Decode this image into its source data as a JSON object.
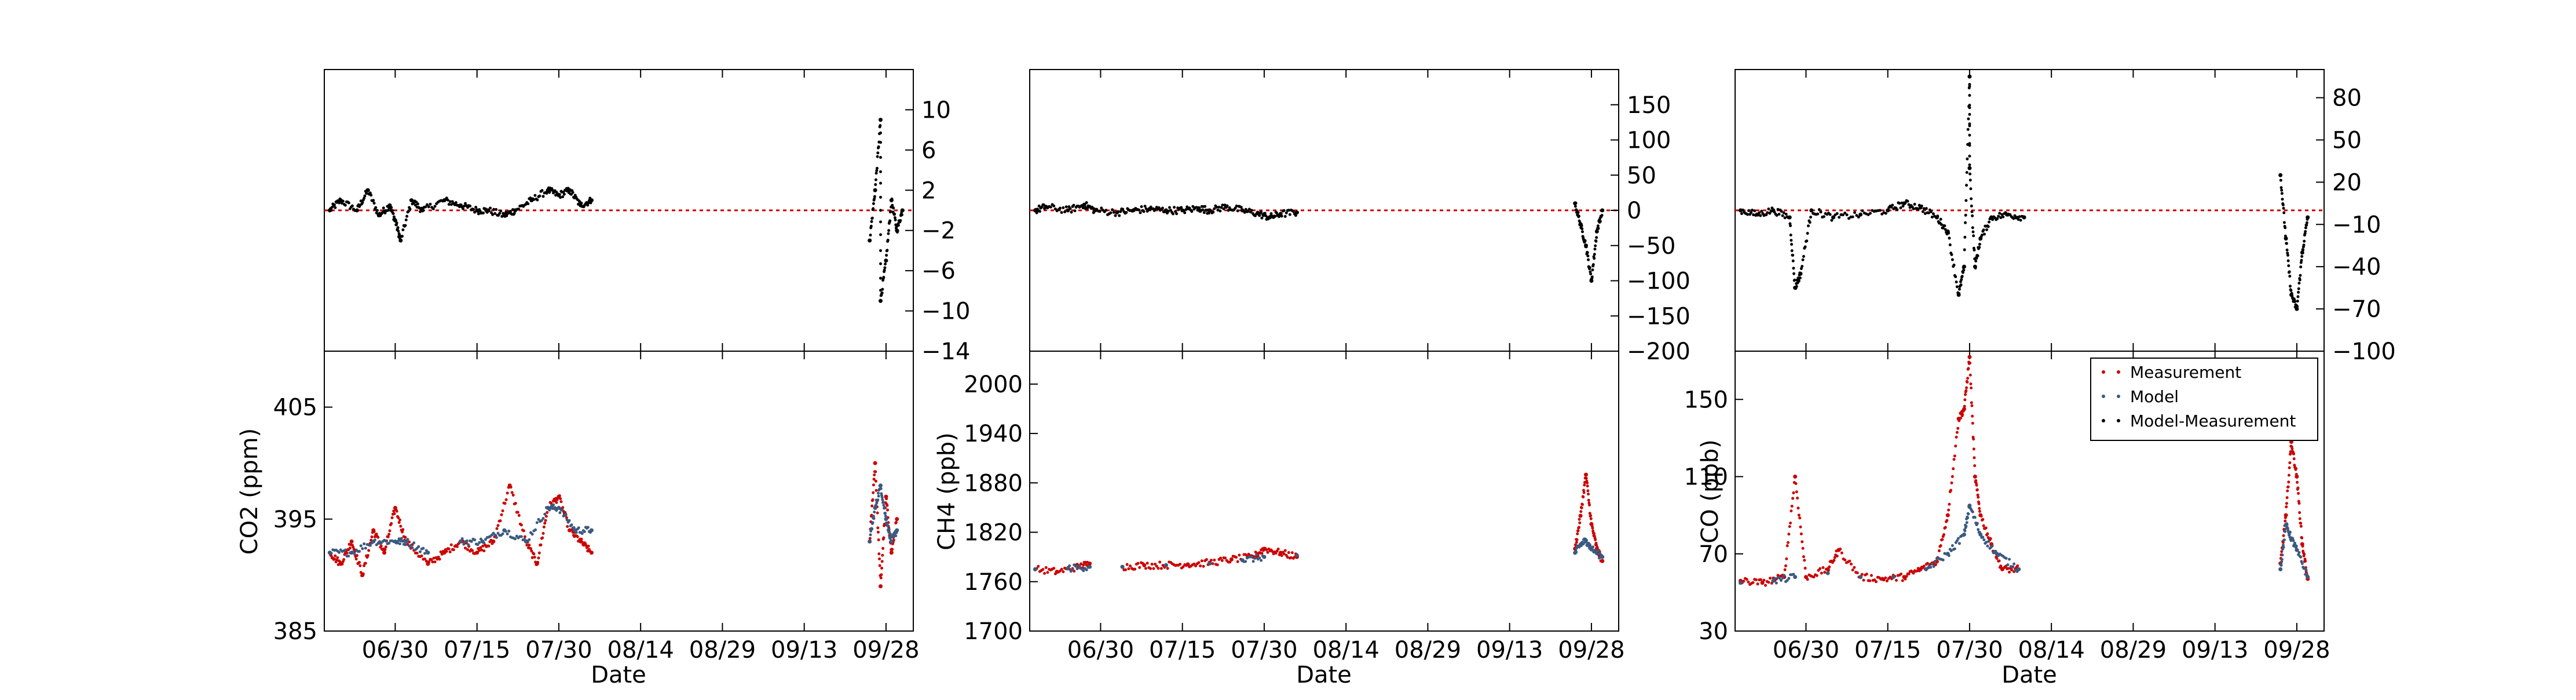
{
  "x_tick_labels": [
    "06/30",
    "07/15",
    "07/30",
    "08/14",
    "08/29",
    "09/13",
    "09/28"
  ],
  "x_label": "Date",
  "colors": {
    "measurement": "#cc0000",
    "model": "#3a5a80",
    "difference": "#000000",
    "zero_line": "#cc0000",
    "axes": "#000000"
  },
  "chart_data": [
    {
      "type": "scatter",
      "panel": "CO2 difference",
      "x_range": [
        "06/17",
        "10/03"
      ],
      "ylim": [
        -14,
        14
      ],
      "y_ticks": [
        "10",
        "6",
        "2",
        "−2",
        "−6",
        "−10",
        "−14"
      ],
      "y_axis_side": "right",
      "zero_line": true,
      "series": [
        {
          "color": "#000000",
          "points": [
            [
              "06/18",
              0
            ],
            [
              "06/20",
              1
            ],
            [
              "06/23",
              0
            ],
            [
              "06/25",
              2
            ],
            [
              "06/27",
              -0.5
            ],
            [
              "06/29",
              0.5
            ],
            [
              "06/30",
              -1
            ],
            [
              "07/01",
              -3
            ],
            [
              "07/03",
              1
            ],
            [
              "07/05",
              0
            ],
            [
              "07/09",
              1
            ],
            [
              "07/12",
              0.5
            ],
            [
              "07/15",
              0
            ],
            [
              "07/17",
              0
            ],
            [
              "07/20",
              -0.5
            ],
            [
              "07/22",
              0
            ],
            [
              "07/25",
              1
            ],
            [
              "07/28",
              2
            ],
            [
              "07/30",
              1.5
            ],
            [
              "08/01",
              2
            ],
            [
              "08/03",
              0.5
            ],
            [
              "08/05",
              1
            ],
            [
              "09/25",
              -3
            ],
            [
              "09/26",
              2
            ],
            [
              "09/27",
              9
            ],
            [
              "09/27",
              -9
            ],
            [
              "09/28",
              -5
            ],
            [
              "09/29",
              1
            ],
            [
              "09/30",
              -2
            ],
            [
              "10/01",
              0
            ]
          ]
        }
      ]
    },
    {
      "type": "scatter",
      "panel": "CO2",
      "ylabel": "CO2 (ppm)",
      "x_range": [
        "06/17",
        "10/03"
      ],
      "ylim": [
        385,
        410
      ],
      "y_ticks": [
        "385",
        "395",
        "405"
      ],
      "series": [
        {
          "color": "#cc0000",
          "points": [
            [
              "06/18",
              392
            ],
            [
              "06/20",
              391
            ],
            [
              "06/22",
              393
            ],
            [
              "06/24",
              390
            ],
            [
              "06/26",
              394
            ],
            [
              "06/28",
              392
            ],
            [
              "06/30",
              396
            ],
            [
              "07/02",
              393
            ],
            [
              "07/06",
              391
            ],
            [
              "07/09",
              392
            ],
            [
              "07/12",
              393
            ],
            [
              "07/15",
              392
            ],
            [
              "07/18",
              393
            ],
            [
              "07/21",
              398
            ],
            [
              "07/24",
              393
            ],
            [
              "07/26",
              391
            ],
            [
              "07/28",
              396
            ],
            [
              "07/30",
              397
            ],
            [
              "08/01",
              394
            ],
            [
              "08/03",
              393
            ],
            [
              "08/05",
              392
            ],
            [
              "09/25",
              393
            ],
            [
              "09/26",
              400
            ],
            [
              "09/27",
              389
            ],
            [
              "09/28",
              397
            ],
            [
              "09/29",
              392
            ],
            [
              "09/30",
              395
            ]
          ]
        },
        {
          "color": "#3a5a80",
          "points": [
            [
              "06/18",
              392
            ],
            [
              "06/22",
              392
            ],
            [
              "06/26",
              393
            ],
            [
              "06/30",
              393
            ],
            [
              "07/02",
              393
            ],
            [
              "07/06",
              392
            ],
            [
              "07/12",
              393
            ],
            [
              "07/16",
              393
            ],
            [
              "07/20",
              394
            ],
            [
              "07/24",
              393
            ],
            [
              "07/28",
              396
            ],
            [
              "07/30",
              396
            ],
            [
              "08/02",
              394
            ],
            [
              "08/05",
              394
            ],
            [
              "09/25",
              393
            ],
            [
              "09/26",
              396
            ],
            [
              "09/27",
              398
            ],
            [
              "09/28",
              395
            ],
            [
              "09/29",
              393
            ],
            [
              "09/30",
              394
            ]
          ]
        }
      ]
    },
    {
      "type": "scatter",
      "panel": "CH4 difference",
      "x_range": [
        "06/17",
        "10/03"
      ],
      "ylim": [
        -200,
        200
      ],
      "y_ticks": [
        "150",
        "100",
        "50",
        "0",
        "−50",
        "−100",
        "−150",
        "−200"
      ],
      "y_axis_side": "right",
      "zero_line": true,
      "series": [
        {
          "color": "#000000",
          "points": [
            [
              "06/18",
              0
            ],
            [
              "06/20",
              5
            ],
            [
              "06/24",
              0
            ],
            [
              "06/27",
              8
            ],
            [
              "06/29",
              0
            ],
            [
              "07/03",
              -3
            ],
            [
              "07/06",
              0
            ],
            [
              "07/09",
              2
            ],
            [
              "07/12",
              0
            ],
            [
              "07/15",
              0
            ],
            [
              "07/18",
              3
            ],
            [
              "07/20",
              0
            ],
            [
              "07/23",
              5
            ],
            [
              "07/26",
              0
            ],
            [
              "07/29",
              -5
            ],
            [
              "07/31",
              -10
            ],
            [
              "08/02",
              -5
            ],
            [
              "08/05",
              -3
            ],
            [
              "09/25",
              10
            ],
            [
              "09/26",
              -20
            ],
            [
              "09/27",
              -50
            ],
            [
              "09/28",
              -100
            ],
            [
              "09/29",
              -30
            ],
            [
              "09/30",
              0
            ]
          ]
        }
      ]
    },
    {
      "type": "scatter",
      "panel": "CH4",
      "ylabel": "CH4 (ppb)",
      "x_range": [
        "06/17",
        "10/03"
      ],
      "ylim": [
        1700,
        2040
      ],
      "y_ticks": [
        "1700",
        "1760",
        "1820",
        "1880",
        "1940",
        "2000"
      ],
      "series": [
        {
          "color": "#cc0000",
          "points": [
            [
              "06/18",
              1775
            ],
            [
              "06/22",
              1772
            ],
            [
              "06/26",
              1778
            ],
            [
              "06/28",
              1782
            ],
            [
              "07/04",
              1778
            ],
            [
              "07/08",
              1780
            ],
            [
              "07/12",
              1780
            ],
            [
              "07/16",
              1781
            ],
            [
              "07/20",
              1783
            ],
            [
              "07/24",
              1787
            ],
            [
              "07/28",
              1790
            ],
            [
              "07/30",
              1800
            ],
            [
              "08/02",
              1795
            ],
            [
              "08/05",
              1790
            ],
            [
              "09/25",
              1800
            ],
            [
              "09/26",
              1840
            ],
            [
              "09/27",
              1890
            ],
            [
              "09/28",
              1830
            ],
            [
              "09/29",
              1800
            ],
            [
              "09/30",
              1785
            ]
          ]
        },
        {
          "color": "#3a5a80",
          "points": [
            [
              "06/18",
              1775
            ],
            [
              "06/24",
              1776
            ],
            [
              "06/28",
              1778
            ],
            [
              "07/04",
              1778
            ],
            [
              "07/12",
              1780
            ],
            [
              "07/20",
              1782
            ],
            [
              "07/26",
              1786
            ],
            [
              "07/30",
              1790
            ],
            [
              "08/05",
              1792
            ],
            [
              "09/25",
              1795
            ],
            [
              "09/26",
              1805
            ],
            [
              "09/27",
              1810
            ],
            [
              "09/28",
              1800
            ],
            [
              "09/30",
              1790
            ]
          ]
        }
      ]
    },
    {
      "type": "scatter",
      "panel": "CO difference",
      "x_range": [
        "06/17",
        "10/03"
      ],
      "ylim": [
        -100,
        100
      ],
      "y_ticks": [
        "80",
        "50",
        "20",
        "−10",
        "−40",
        "−70",
        "−100"
      ],
      "y_axis_side": "right",
      "zero_line": true,
      "series": [
        {
          "color": "#000000",
          "points": [
            [
              "06/18",
              0
            ],
            [
              "06/21",
              -3
            ],
            [
              "06/24",
              0
            ],
            [
              "06/27",
              -5
            ],
            [
              "06/28",
              -55
            ],
            [
              "06/29",
              -45
            ],
            [
              "07/01",
              0
            ],
            [
              "07/05",
              -5
            ],
            [
              "07/10",
              -3
            ],
            [
              "07/15",
              0
            ],
            [
              "07/18",
              5
            ],
            [
              "07/21",
              2
            ],
            [
              "07/24",
              -5
            ],
            [
              "07/26",
              -15
            ],
            [
              "07/28",
              -60
            ],
            [
              "07/29",
              -40
            ],
            [
              "07/30",
              95
            ],
            [
              "07/30",
              30
            ],
            [
              "07/31",
              -40
            ],
            [
              "08/01",
              -20
            ],
            [
              "08/03",
              -5
            ],
            [
              "08/06",
              -3
            ],
            [
              "08/09",
              -5
            ],
            [
              "09/25",
              25
            ],
            [
              "09/26",
              -20
            ],
            [
              "09/27",
              -60
            ],
            [
              "09/28",
              -70
            ],
            [
              "09/29",
              -30
            ],
            [
              "09/30",
              -5
            ]
          ]
        }
      ]
    },
    {
      "type": "scatter",
      "panel": "CO",
      "ylabel": "CO (ppb)",
      "x_range": [
        "06/17",
        "10/03"
      ],
      "ylim": [
        30,
        175
      ],
      "y_ticks": [
        "30",
        "70",
        "110",
        "150"
      ],
      "legend": {
        "placement": "top-right",
        "entries": [
          "Measurement",
          "Model",
          "Model-Measurement"
        ]
      },
      "series": [
        {
          "name": "Measurement",
          "color": "#cc0000",
          "points": [
            [
              "06/18",
              56
            ],
            [
              "06/22",
              55
            ],
            [
              "06/26",
              58
            ],
            [
              "06/28",
              110
            ],
            [
              "06/30",
              58
            ],
            [
              "07/04",
              62
            ],
            [
              "07/06",
              72
            ],
            [
              "07/10",
              58
            ],
            [
              "07/14",
              57
            ],
            [
              "07/18",
              58
            ],
            [
              "07/21",
              62
            ],
            [
              "07/24",
              66
            ],
            [
              "07/26",
              90
            ],
            [
              "07/28",
              140
            ],
            [
              "07/29",
              145
            ],
            [
              "07/30",
              172
            ],
            [
              "07/31",
              110
            ],
            [
              "08/01",
              90
            ],
            [
              "08/03",
              75
            ],
            [
              "08/05",
              62
            ],
            [
              "08/08",
              62
            ],
            [
              "09/25",
              65
            ],
            [
              "09/26",
              90
            ],
            [
              "09/27",
              128
            ],
            [
              "09/28",
              110
            ],
            [
              "09/29",
              75
            ],
            [
              "09/30",
              57
            ]
          ]
        },
        {
          "name": "Model",
          "color": "#3a5a80",
          "points": [
            [
              "06/18",
              55
            ],
            [
              "06/24",
              56
            ],
            [
              "06/28",
              58
            ],
            [
              "07/04",
              60
            ],
            [
              "07/10",
              58
            ],
            [
              "07/16",
              58
            ],
            [
              "07/22",
              62
            ],
            [
              "07/26",
              70
            ],
            [
              "07/29",
              80
            ],
            [
              "07/30",
              95
            ],
            [
              "08/01",
              80
            ],
            [
              "08/04",
              70
            ],
            [
              "08/08",
              62
            ],
            [
              "09/25",
              62
            ],
            [
              "09/26",
              85
            ],
            [
              "09/27",
              78
            ],
            [
              "09/28",
              72
            ],
            [
              "09/30",
              58
            ]
          ]
        },
        {
          "name": "Model-Measurement",
          "color": "#000000",
          "points": []
        }
      ]
    }
  ]
}
